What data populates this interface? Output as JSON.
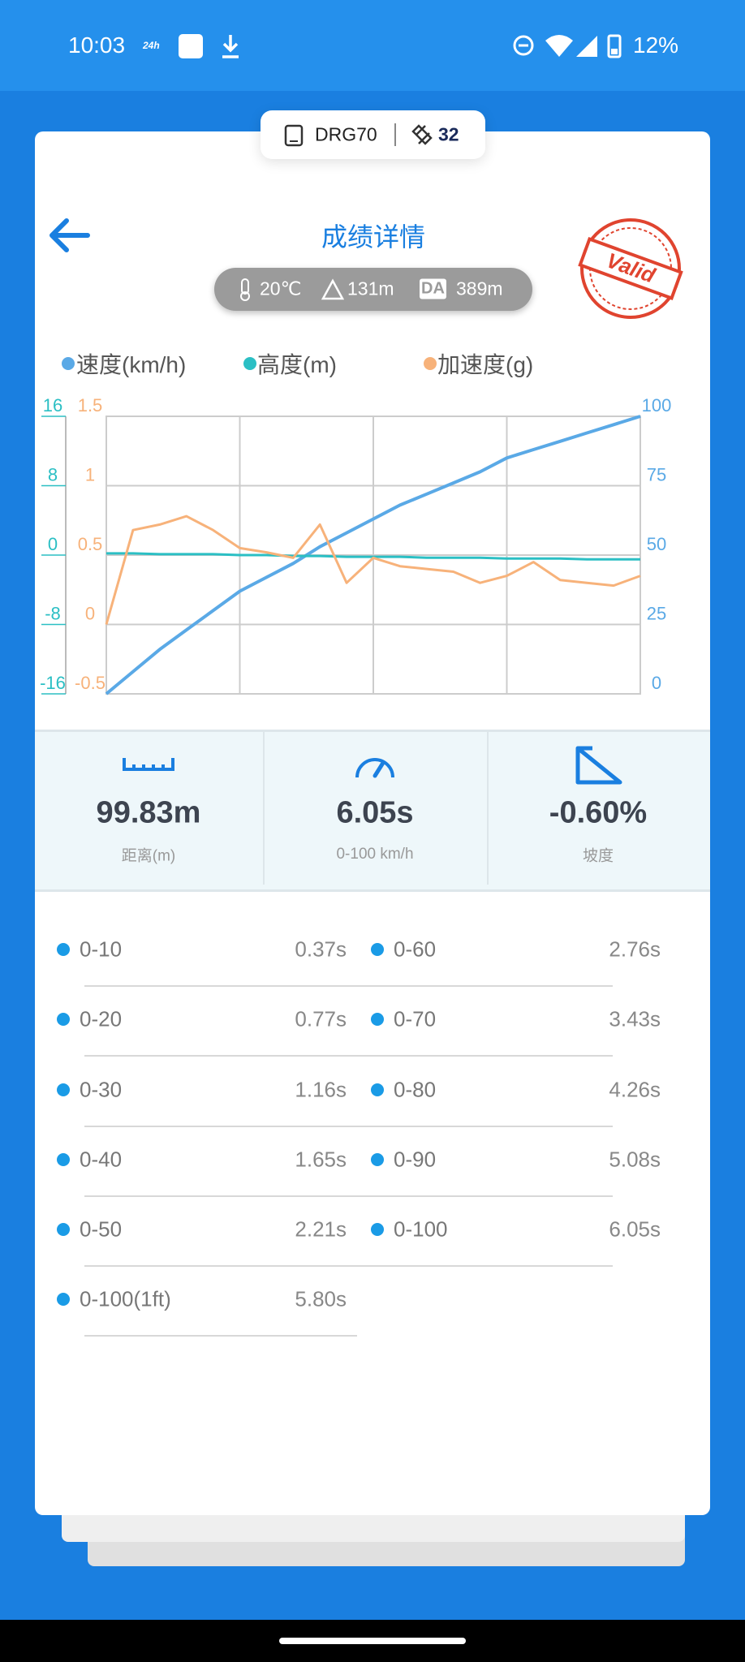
{
  "status_bar": {
    "time": "10:03",
    "clock_badge": "24h",
    "battery": "12%"
  },
  "device": {
    "name": "DRG70",
    "satellites": 32
  },
  "header": {
    "title": "成绩详情",
    "stamp": "Valid"
  },
  "conditions": {
    "temperature": "20℃",
    "altitude": "131m",
    "da_label": "DA",
    "density_altitude": "389m"
  },
  "chart_data": {
    "type": "line",
    "series": [
      {
        "name": "速度(km/h)",
        "color": "#5aa9e6",
        "axis": "y2",
        "values": [
          0,
          8,
          16,
          23,
          30,
          37,
          42,
          47,
          53,
          58,
          63,
          68,
          72,
          76,
          80,
          85,
          88,
          91,
          94,
          97,
          100
        ]
      },
      {
        "name": "高度(m)",
        "color": "#2bbfc4",
        "axis": "y3",
        "values": [
          0.2,
          0.2,
          0.1,
          0.1,
          0.1,
          0,
          0,
          -0.1,
          -0.1,
          -0.2,
          -0.2,
          -0.2,
          -0.3,
          -0.3,
          -0.3,
          -0.4,
          -0.4,
          -0.4,
          -0.5,
          -0.5,
          -0.5
        ]
      },
      {
        "name": "加速度(g)",
        "color": "#f7b27a",
        "axis": "y",
        "values": [
          0,
          0.68,
          0.72,
          0.78,
          0.68,
          0.55,
          0.52,
          0.48,
          0.72,
          0.3,
          0.48,
          0.42,
          0.4,
          0.38,
          0.3,
          0.35,
          0.45,
          0.32,
          0.3,
          0.28,
          0.35
        ]
      }
    ],
    "ylim": [
      -0.5,
      1.5
    ],
    "yticks": [
      -0.5,
      0,
      0.5,
      1,
      1.5
    ],
    "y2lim": [
      0,
      100
    ],
    "y2ticks": [
      0,
      25,
      50,
      75,
      100
    ],
    "y3lim": [
      -16,
      16
    ],
    "y3ticks": [
      -16,
      -8,
      0,
      8,
      16
    ],
    "grid": true
  },
  "stats": [
    {
      "value": "99.83m",
      "label": "距离(m)"
    },
    {
      "value": "6.05s",
      "label": "0-100 km/h"
    },
    {
      "value": "-0.60%",
      "label": "坡度"
    }
  ],
  "splits": [
    {
      "label": "0-10",
      "time": "0.37s"
    },
    {
      "label": "0-20",
      "time": "0.77s"
    },
    {
      "label": "0-30",
      "time": "1.16s"
    },
    {
      "label": "0-40",
      "time": "1.65s"
    },
    {
      "label": "0-50",
      "time": "2.21s"
    },
    {
      "label": "0-60",
      "time": "2.76s"
    },
    {
      "label": "0-70",
      "time": "3.43s"
    },
    {
      "label": "0-80",
      "time": "4.26s"
    },
    {
      "label": "0-90",
      "time": "5.08s"
    },
    {
      "label": "0-100",
      "time": "6.05s"
    },
    {
      "label": "0-100(1ft)",
      "time": "5.80s"
    }
  ]
}
